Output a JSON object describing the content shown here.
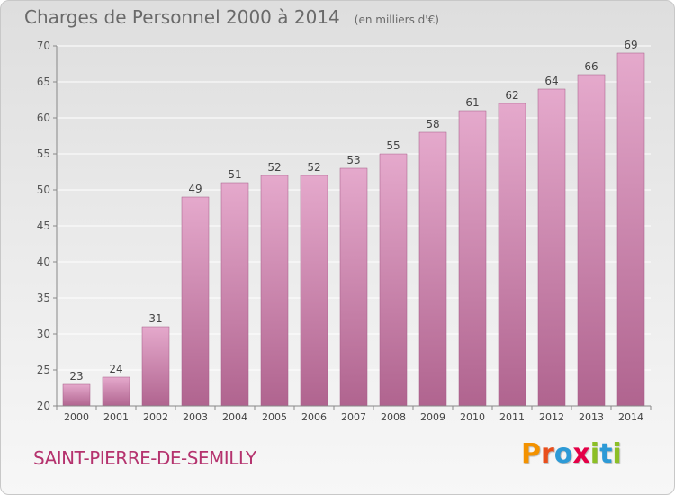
{
  "header": {
    "title": "Charges de Personnel 2000 à 2014",
    "unit": "(en milliers d'€)"
  },
  "footer": {
    "commune": "SAINT-PIERRE-DE-SEMILLY",
    "logo_letters": [
      "P",
      "r",
      "o",
      "x",
      "i",
      "t",
      "i"
    ],
    "logo_colors": [
      "#f39200",
      "#e94e1b",
      "#2d9ad6",
      "#e40046",
      "#8cbf26",
      "#2d9ad6",
      "#8cbf26"
    ]
  },
  "colors": {
    "bar_top": "#e5a9cc",
    "bar_bottom": "#b0648f",
    "axis": "#888888",
    "grid": "#ffffff"
  },
  "chart_data": {
    "type": "bar",
    "categories": [
      "2000",
      "2001",
      "2002",
      "2003",
      "2004",
      "2005",
      "2006",
      "2007",
      "2008",
      "2009",
      "2010",
      "2011",
      "2012",
      "2013",
      "2014"
    ],
    "values": [
      23,
      24,
      31,
      49,
      51,
      52,
      52,
      53,
      55,
      58,
      61,
      62,
      64,
      66,
      69
    ],
    "title": "Charges de Personnel 2000 à 2014",
    "ylabel": "",
    "xlabel": "",
    "ylim": [
      20,
      70
    ],
    "yticks": [
      20,
      25,
      30,
      35,
      40,
      45,
      50,
      55,
      60,
      65,
      70
    ],
    "grid": true
  }
}
